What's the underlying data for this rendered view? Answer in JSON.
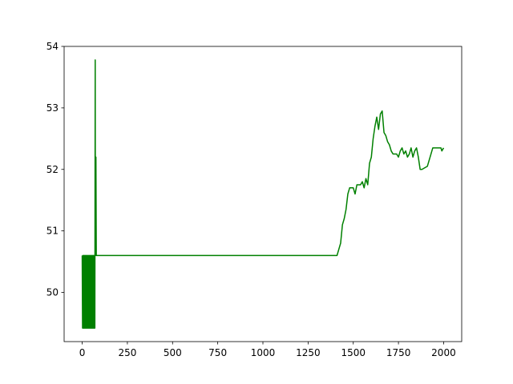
{
  "chart_data": {
    "type": "line",
    "color": "#008000",
    "x": [
      0,
      2,
      4,
      6,
      8,
      10,
      12,
      14,
      16,
      18,
      20,
      22,
      24,
      26,
      28,
      30,
      32,
      34,
      36,
      38,
      40,
      42,
      44,
      46,
      48,
      50,
      52,
      54,
      56,
      58,
      60,
      62,
      64,
      66,
      68,
      70,
      72,
      73,
      74,
      75,
      76,
      78,
      1410,
      1420,
      1430,
      1440,
      1450,
      1460,
      1470,
      1480,
      1500,
      1510,
      1520,
      1540,
      1550,
      1560,
      1570,
      1580,
      1590,
      1600,
      1610,
      1620,
      1630,
      1640,
      1650,
      1660,
      1670,
      1680,
      1690,
      1700,
      1710,
      1720,
      1740,
      1750,
      1760,
      1770,
      1780,
      1790,
      1800,
      1810,
      1820,
      1830,
      1840,
      1850,
      1860,
      1870,
      1880,
      1910,
      1920,
      1930,
      1940,
      1985,
      1990,
      2000
    ],
    "values": [
      50.6,
      49.42,
      50.6,
      49.42,
      50.6,
      49.42,
      50.6,
      49.42,
      50.6,
      49.42,
      50.6,
      49.42,
      50.6,
      49.42,
      50.6,
      49.42,
      50.6,
      49.42,
      50.6,
      49.42,
      50.6,
      49.42,
      50.6,
      49.42,
      50.6,
      49.42,
      50.6,
      49.42,
      50.6,
      49.42,
      50.6,
      49.42,
      50.6,
      49.42,
      50.6,
      49.42,
      53.78,
      50.6,
      51.75,
      50.6,
      52.2,
      50.6,
      50.6,
      50.7,
      50.8,
      51.1,
      51.2,
      51.35,
      51.6,
      51.7,
      51.7,
      51.6,
      51.75,
      51.75,
      51.8,
      51.7,
      51.85,
      51.75,
      52.1,
      52.2,
      52.5,
      52.7,
      52.85,
      52.65,
      52.9,
      52.95,
      52.6,
      52.55,
      52.45,
      52.4,
      52.3,
      52.25,
      52.25,
      52.2,
      52.3,
      52.35,
      52.25,
      52.3,
      52.2,
      52.25,
      52.35,
      52.2,
      52.3,
      52.35,
      52.2,
      52.0,
      52.0,
      52.05,
      52.15,
      52.25,
      52.35,
      52.35,
      52.3,
      52.35
    ],
    "xlim": [
      -100,
      2100
    ],
    "ylim": [
      49.2,
      54.0
    ],
    "xticks": [
      0,
      250,
      500,
      750,
      1000,
      1250,
      1500,
      1750,
      2000
    ],
    "yticks": [
      50,
      51,
      52,
      53,
      54
    ]
  }
}
